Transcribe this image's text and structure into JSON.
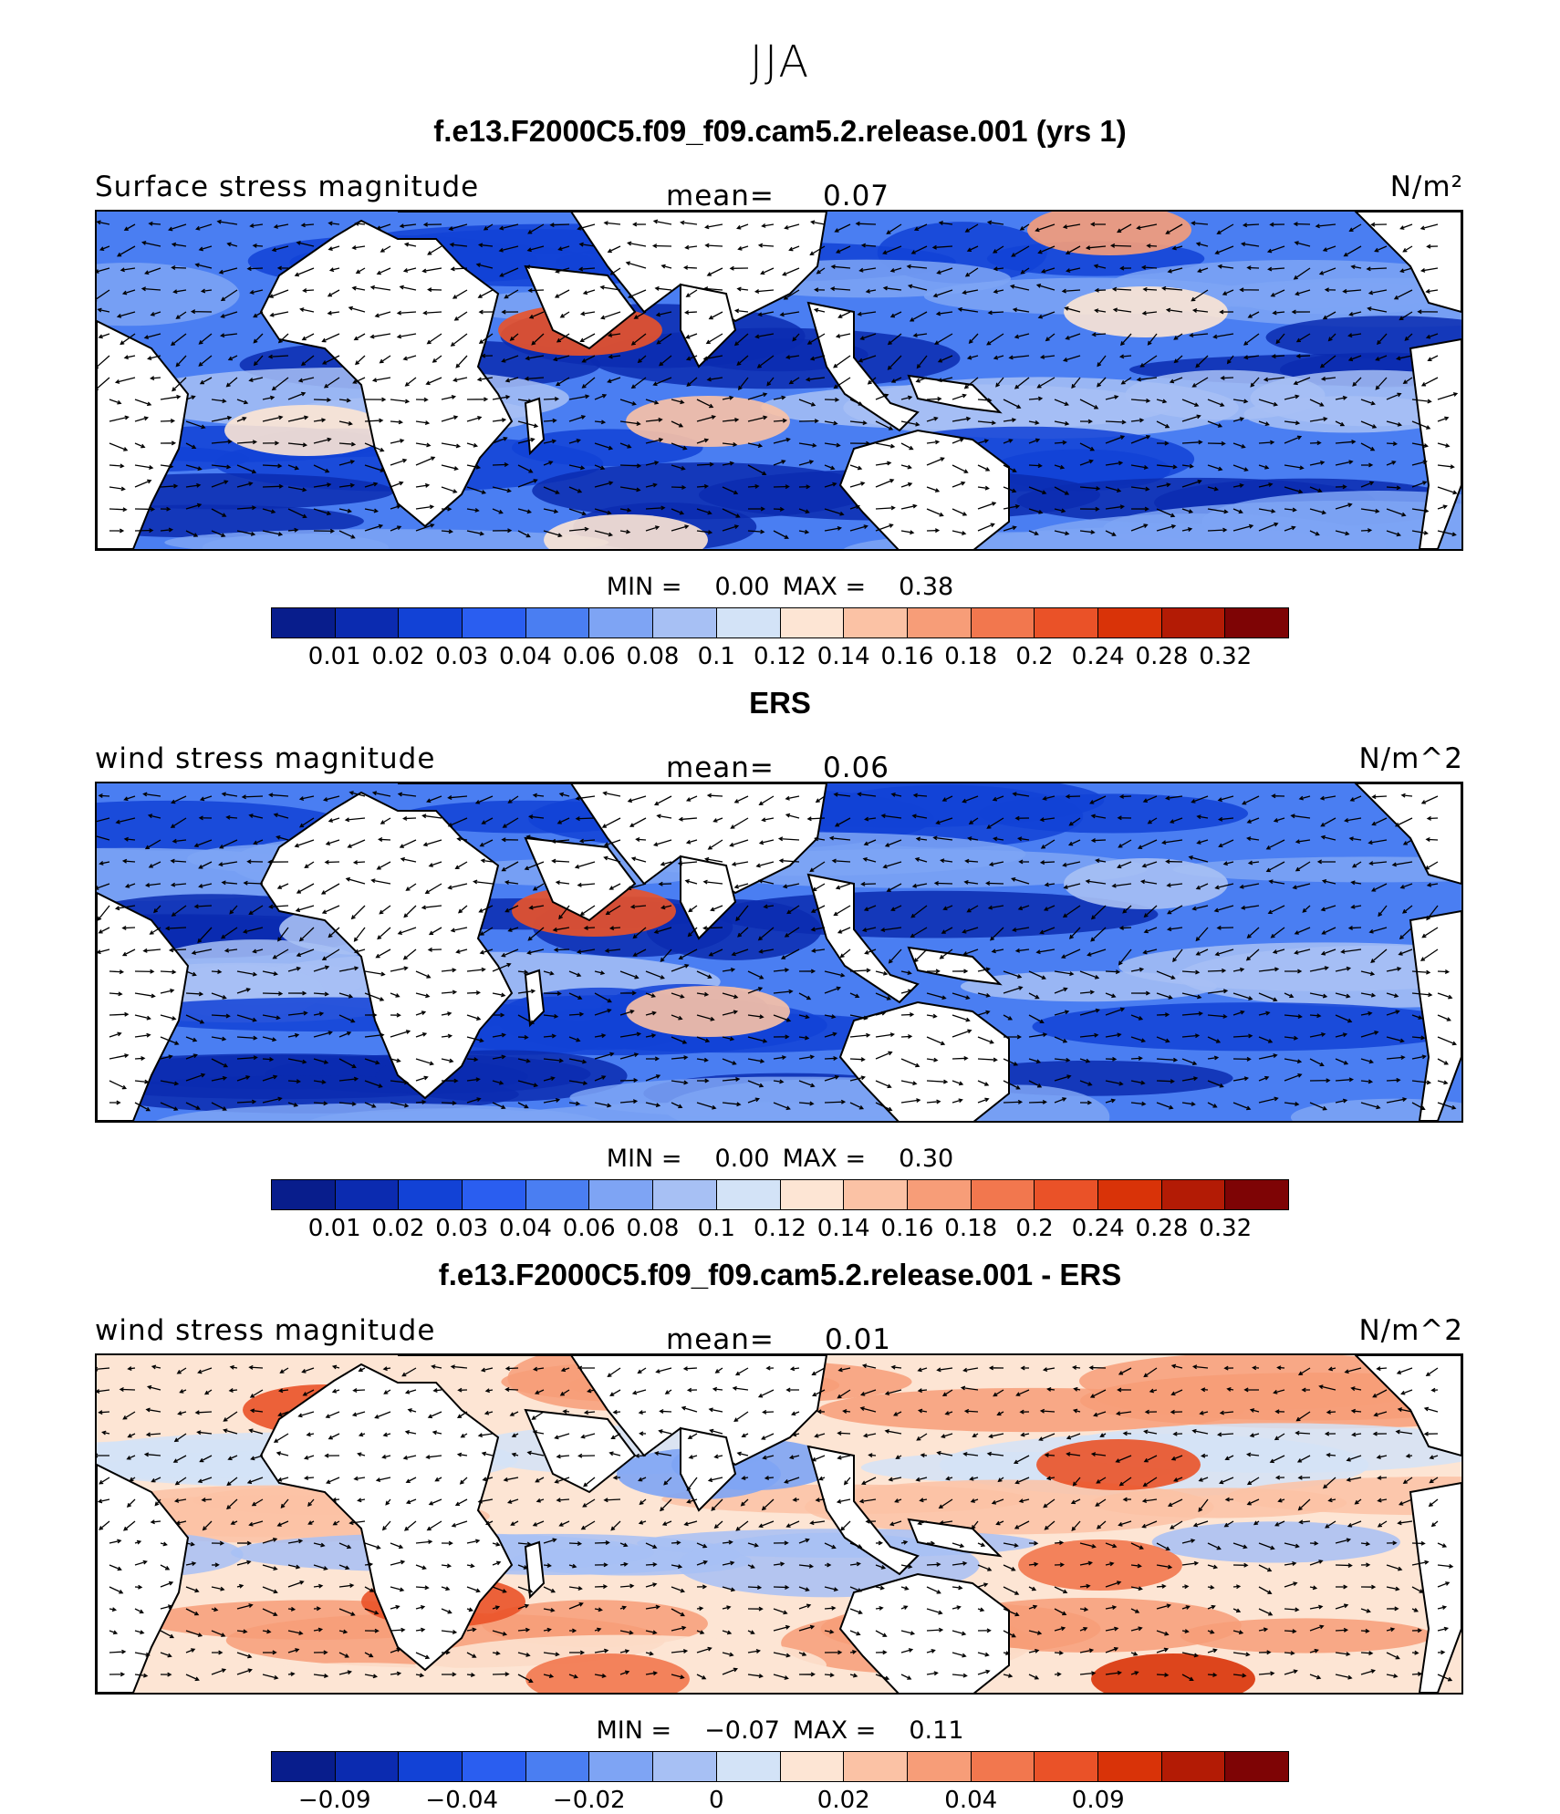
{
  "season": "JJA",
  "colors": [
    "#081d8c",
    "#0b2bb0",
    "#1242d6",
    "#2a5ef0",
    "#4a7ef2",
    "#7ea4f4",
    "#a7c0f4",
    "#d3e3f7",
    "#fde5d4",
    "#fbc2a5",
    "#f79d78",
    "#f2774e",
    "#ea5228",
    "#d93308",
    "#b31b05",
    "#7e0405"
  ],
  "panels": [
    {
      "title": "f.e13.F2000C5.f09_f09.cam5.2.release.001 (yrs 1)",
      "left_label": "Surface stress magnitude",
      "mean_label": "mean=",
      "mean_value": "0.07",
      "units": "N/m²",
      "min_label": "MIN =",
      "min_value": "0.00",
      "max_label": "MAX =",
      "max_value": "0.38",
      "ticks": [
        "0.01",
        "0.02",
        "0.03",
        "0.04",
        "0.06",
        "0.08",
        "0.1",
        "0.12",
        "0.14",
        "0.16",
        "0.18",
        "0.2",
        "0.24",
        "0.28",
        "0.32"
      ]
    },
    {
      "title": "ERS",
      "left_label": "wind stress magnitude",
      "mean_label": "mean=",
      "mean_value": "0.06",
      "units": "N/m^2",
      "min_label": "MIN =",
      "min_value": "0.00",
      "max_label": "MAX =",
      "max_value": "0.30",
      "ticks": [
        "0.01",
        "0.02",
        "0.03",
        "0.04",
        "0.06",
        "0.08",
        "0.1",
        "0.12",
        "0.14",
        "0.16",
        "0.18",
        "0.2",
        "0.24",
        "0.28",
        "0.32"
      ]
    },
    {
      "title": "f.e13.F2000C5.f09_f09.cam5.2.release.001 - ERS",
      "left_label": "wind stress magnitude",
      "mean_label": "mean=",
      "mean_value": "0.01",
      "units": "N/m^2",
      "min_label": "MIN =",
      "min_value": "−0.07",
      "max_label": "MAX =",
      "max_value": "0.11",
      "ticks": [
        "−0.09",
        "",
        "−0.04",
        "",
        "−0.02",
        "",
        "0",
        "",
        "0.02",
        "",
        "0.04",
        "",
        "0.09",
        "",
        ""
      ]
    }
  ]
}
